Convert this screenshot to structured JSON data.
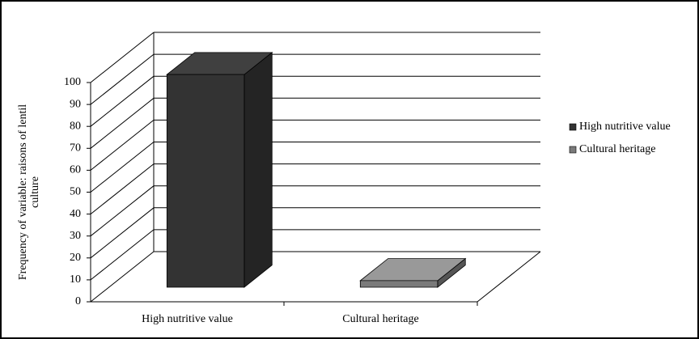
{
  "chart_data": {
    "type": "bar3d",
    "ylabel": [
      "Frequency of variable: raisons of lentil",
      "culture"
    ],
    "categories": [
      "High nutritive value",
      "Cultural heritage"
    ],
    "series": [
      {
        "name": "High nutritive value",
        "color": "#333333",
        "values": [
          97,
          null
        ]
      },
      {
        "name": "Cultural heritage",
        "color": "#7a7a7a",
        "values": [
          null,
          3
        ]
      }
    ],
    "ylim": [
      0,
      100
    ],
    "yticks": [
      0,
      10,
      20,
      30,
      40,
      50,
      60,
      70,
      80,
      90,
      100
    ],
    "grid": true,
    "legend": "right"
  }
}
